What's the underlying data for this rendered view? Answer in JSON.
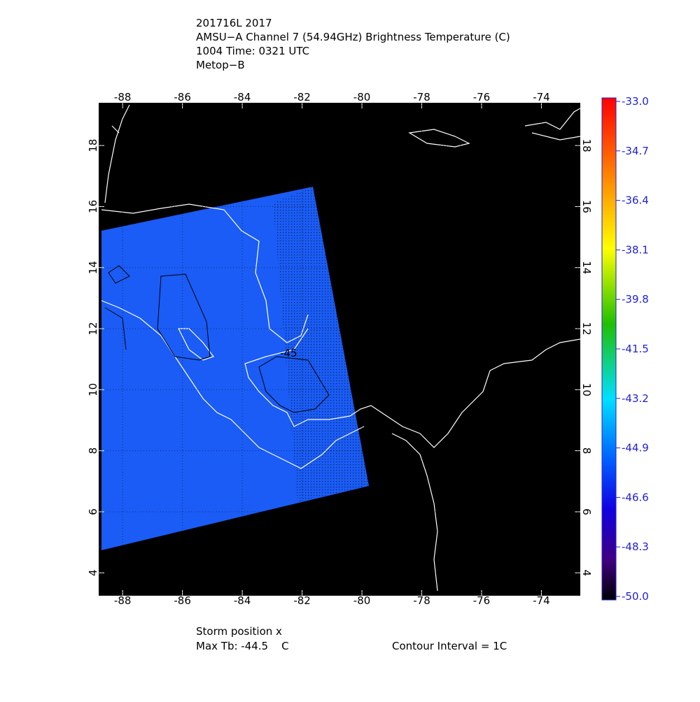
{
  "header": {
    "lines": [
      "201716L 2017",
      "AMSU−A Channel 7 (54.94GHz) Brightness Temperature (C)",
      "1004 Time: 0321 UTC",
      "Metop−B"
    ]
  },
  "map": {
    "lon_ticks": [
      -88,
      -86,
      -84,
      -82,
      -80,
      -78,
      -76,
      -74
    ],
    "lat_ticks": [
      4,
      6,
      8,
      10,
      12,
      14,
      16,
      18
    ],
    "lon_range": [
      -88.8,
      -72.7
    ],
    "lat_range": [
      3.25,
      19.4
    ],
    "contour_label": "-45"
  },
  "colorbar": {
    "range": [
      -50,
      -33
    ],
    "ticks": [
      {
        "value": -33,
        "label": "-33.0"
      },
      {
        "value": -34.7,
        "label": "-34.7"
      },
      {
        "value": -36.4,
        "label": "-36.4"
      },
      {
        "value": -38.1,
        "label": "-38.1"
      },
      {
        "value": -39.8,
        "label": "-39.8"
      },
      {
        "value": -41.5,
        "label": "-41.5"
      },
      {
        "value": -43.2,
        "label": "-43.2"
      },
      {
        "value": -44.9,
        "label": "-44.9"
      },
      {
        "value": -46.6,
        "label": "-46.6"
      },
      {
        "value": -48.3,
        "label": "-48.3"
      },
      {
        "value": -50,
        "label": "-50.0"
      }
    ]
  },
  "footer": {
    "storm": "Storm position x",
    "max_tb": "Max Tb: -44.5    C",
    "contour": "Contour Interval = 1C"
  }
}
